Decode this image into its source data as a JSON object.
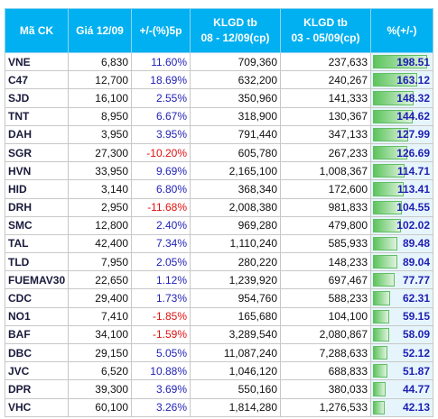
{
  "table": {
    "header": [
      [
        "Mã CK"
      ],
      [
        "Giá 12/09"
      ],
      [
        "+/-(%)5p"
      ],
      [
        "KLGD tb",
        "08 - 12/09(cp)"
      ],
      [
        "KLGD tb",
        "03 - 05/09(cp)"
      ],
      [
        "%(+/-)"
      ]
    ],
    "rows": [
      [
        "VNE",
        "6,830",
        "11.60%",
        "709,360",
        "237,633",
        "198.51"
      ],
      [
        "C47",
        "12,700",
        "18.69%",
        "632,200",
        "240,267",
        "163.12"
      ],
      [
        "SJD",
        "16,100",
        "2.55%",
        "350,960",
        "141,333",
        "148.32"
      ],
      [
        "TNT",
        "8,950",
        "6.67%",
        "318,900",
        "130,367",
        "144.62"
      ],
      [
        "DAH",
        "3,950",
        "3.95%",
        "791,440",
        "347,133",
        "127.99"
      ],
      [
        "SGR",
        "27,300",
        "-10.20%",
        "605,780",
        "267,233",
        "126.69"
      ],
      [
        "HVN",
        "33,950",
        "9.69%",
        "2,165,100",
        "1,008,367",
        "114.71"
      ],
      [
        "HID",
        "3,140",
        "6.80%",
        "368,340",
        "172,600",
        "113.41"
      ],
      [
        "DRH",
        "2,950",
        "-11.68%",
        "2,008,380",
        "981,833",
        "104.55"
      ],
      [
        "SMC",
        "12,800",
        "2.40%",
        "969,280",
        "479,800",
        "102.02"
      ],
      [
        "TAL",
        "42,400",
        "7.34%",
        "1,110,240",
        "585,933",
        "89.48"
      ],
      [
        "TLD",
        "7,950",
        "2.05%",
        "280,220",
        "148,233",
        "89.04"
      ],
      [
        "FUEMAV30",
        "22,650",
        "1.12%",
        "1,239,920",
        "697,467",
        "77.77"
      ],
      [
        "CDC",
        "29,400",
        "1.73%",
        "954,760",
        "588,233",
        "62.31"
      ],
      [
        "NO1",
        "7,410",
        "-1.85%",
        "165,680",
        "104,100",
        "59.15"
      ],
      [
        "BAF",
        "34,100",
        "-1.59%",
        "3,289,540",
        "2,080,867",
        "58.09"
      ],
      [
        "DBC",
        "29,150",
        "5.05%",
        "11,087,240",
        "7,288,633",
        "52.12"
      ],
      [
        "JVC",
        "6,520",
        "10.88%",
        "1,046,120",
        "688,833",
        "51.87"
      ],
      [
        "DPR",
        "39,300",
        "3.69%",
        "550,160",
        "380,033",
        "44.77"
      ],
      [
        "VHC",
        "60,100",
        "3.26%",
        "1,814,280",
        "1,276,533",
        "42.13"
      ]
    ]
  }
}
